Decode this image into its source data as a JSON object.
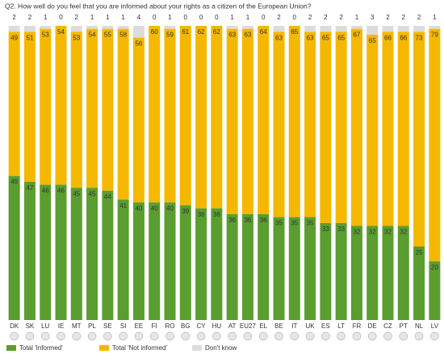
{
  "chart_data": {
    "type": "stacked-bar",
    "title": "Q2. How well do you feel that you are informed about your rights as a citizen of the European Union?",
    "categories": [
      "DK",
      "SK",
      "LU",
      "IE",
      "MT",
      "PL",
      "SE",
      "SI",
      "EE",
      "FI",
      "RO",
      "BG",
      "CY",
      "HU",
      "AT",
      "EU27",
      "EL",
      "BE",
      "IT",
      "UK",
      "ES",
      "LT",
      "FR",
      "DE",
      "CZ",
      "PT",
      "NL",
      "LV"
    ],
    "ylim": [
      0,
      100
    ],
    "series": [
      {
        "name": "Total 'Informed'",
        "color": "#5a9e2f",
        "values": [
          49,
          47,
          46,
          46,
          45,
          45,
          44,
          41,
          40,
          40,
          40,
          39,
          38,
          38,
          36,
          36,
          36,
          35,
          35,
          35,
          33,
          33,
          32,
          32,
          32,
          32,
          25,
          20
        ]
      },
      {
        "name": "Total 'Not informed'",
        "color": "#f5b800",
        "values": [
          49,
          51,
          53,
          54,
          53,
          54,
          55,
          58,
          56,
          60,
          59,
          61,
          62,
          62,
          63,
          63,
          64,
          63,
          65,
          63,
          65,
          65,
          67,
          65,
          66,
          66,
          73,
          79
        ]
      },
      {
        "name": "Don't know",
        "color": "#dcdcdc",
        "values": [
          2,
          2,
          1,
          0,
          2,
          1,
          1,
          1,
          4,
          0,
          1,
          0,
          0,
          0,
          1,
          1,
          0,
          2,
          0,
          2,
          2,
          2,
          1,
          3,
          2,
          2,
          2,
          1
        ]
      }
    ]
  }
}
